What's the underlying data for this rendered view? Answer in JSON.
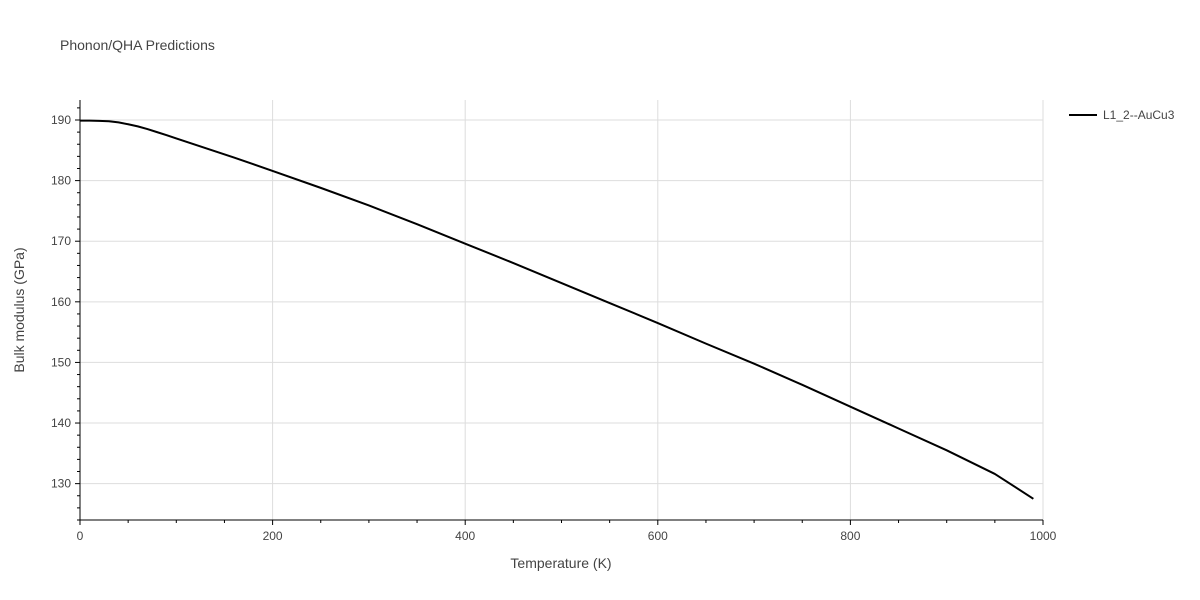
{
  "chart_data": {
    "type": "line",
    "title": "Phonon/QHA Predictions",
    "xlabel": "Temperature (K)",
    "ylabel": "Bulk modulus (GPa)",
    "xlim": [
      0,
      1000
    ],
    "ylim": [
      124,
      193.3
    ],
    "x_ticks": [
      0,
      200,
      400,
      600,
      800,
      1000
    ],
    "y_ticks": [
      130,
      140,
      150,
      160,
      170,
      180,
      190
    ],
    "grid": true,
    "legend_position": "top-right",
    "series": [
      {
        "name": "L1_2--AuCu3",
        "color": "#000000",
        "x": [
          0,
          10,
          20,
          30,
          40,
          50,
          60,
          70,
          80,
          90,
          100,
          120,
          140,
          160,
          180,
          200,
          250,
          300,
          350,
          400,
          450,
          500,
          550,
          600,
          650,
          700,
          750,
          800,
          850,
          900,
          950,
          990
        ],
        "y": [
          189.9,
          189.9,
          189.85,
          189.8,
          189.6,
          189.3,
          188.95,
          188.5,
          188.0,
          187.5,
          186.95,
          185.9,
          184.85,
          183.8,
          182.7,
          181.6,
          178.8,
          175.9,
          172.8,
          169.6,
          166.4,
          163.1,
          159.8,
          156.5,
          153.1,
          149.8,
          146.3,
          142.7,
          139.1,
          135.5,
          131.6,
          127.5
        ]
      }
    ]
  }
}
